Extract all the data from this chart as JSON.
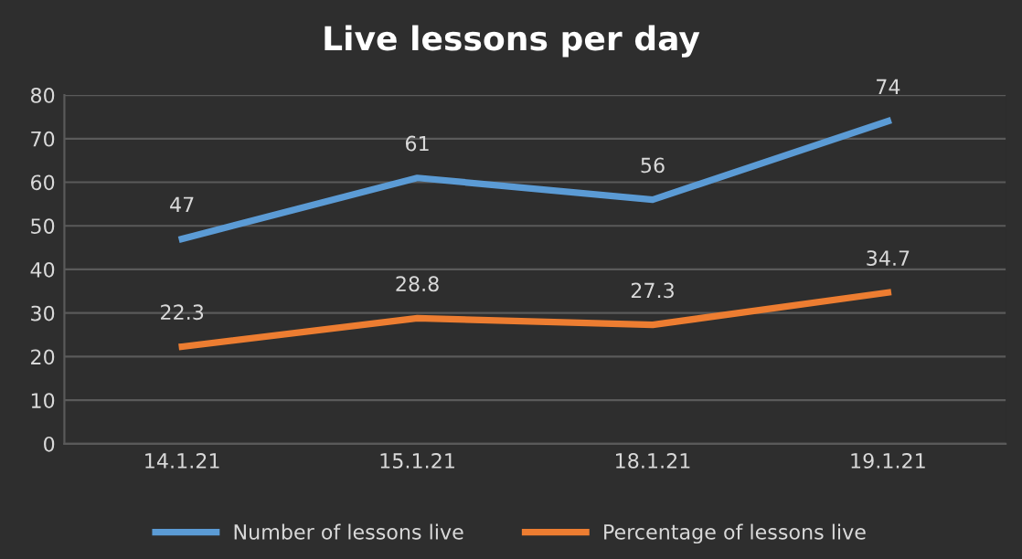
{
  "chart_data": {
    "type": "line",
    "title": "Live lessons per day",
    "categories": [
      "14.1.21",
      "15.1.21",
      "18.1.21",
      "19.1.21"
    ],
    "series": [
      {
        "name": "Number of lessons live",
        "color": "#5b9bd5",
        "values": [
          47,
          61,
          56,
          74
        ]
      },
      {
        "name": "Percentage of lessons live",
        "color": "#ed7d31",
        "values": [
          22.3,
          28.8,
          27.3,
          34.7
        ]
      }
    ],
    "ylim": [
      0,
      80
    ],
    "yticks": [
      0,
      10,
      20,
      30,
      40,
      50,
      60,
      70,
      80
    ],
    "grid": "y",
    "legend": "bottom",
    "data_labels": true,
    "marker": "none",
    "line_style": "solid"
  }
}
